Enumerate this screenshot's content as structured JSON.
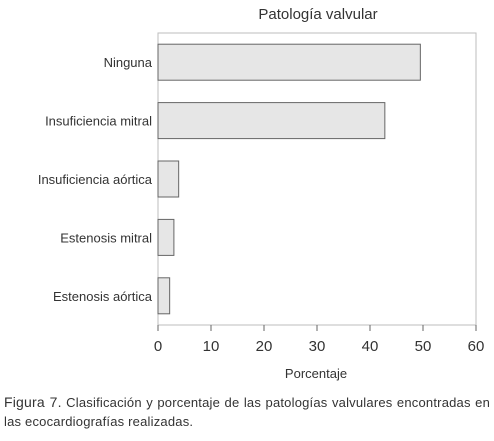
{
  "chart_data": {
    "type": "bar",
    "orientation": "horizontal",
    "title": "Patología valvular",
    "xlabel": "Porcentaje",
    "ylabel": "",
    "categories": [
      "Ninguna",
      "Insuficiencia mitral",
      "Insuficiencia aórtica",
      "Estenosis mitral",
      "Estenosis aórtica"
    ],
    "values": [
      49.5,
      42.8,
      3.9,
      3.0,
      2.2
    ],
    "xlim": [
      0,
      60
    ],
    "xticks": [
      0,
      10,
      20,
      30,
      40,
      50,
      60
    ],
    "grid": false,
    "legend": "none",
    "bar_color": "#e6e6e6",
    "bar_edge_color": "#666666"
  },
  "caption": {
    "label": "Figura 7.",
    "text": "Clasificación y porcentaje de las patologías valvulares encontradas en las ecocardiografías realizadas."
  }
}
